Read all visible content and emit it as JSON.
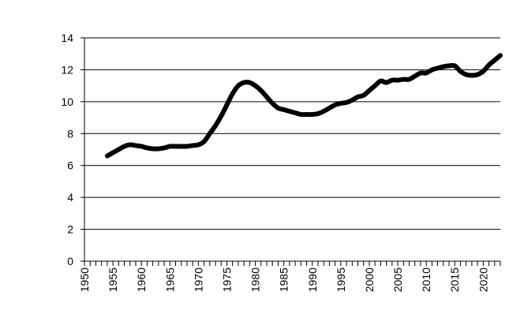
{
  "chart_data": {
    "type": "line",
    "title": "",
    "xlabel": "",
    "ylabel": "",
    "xlim": [
      1950,
      2023
    ],
    "ylim": [
      0,
      14
    ],
    "y_ticks": [
      0,
      2,
      4,
      6,
      8,
      10,
      12,
      14
    ],
    "x_tick_labels": [
      1950,
      1955,
      1960,
      1965,
      1970,
      1975,
      1980,
      1985,
      1990,
      1995,
      2000,
      2005,
      2010,
      2015,
      2020
    ],
    "grid": "horizontal",
    "legend": "none",
    "line_color": "#000000",
    "series": [
      {
        "x": [
          1954,
          1955,
          1956,
          1957,
          1958,
          1959,
          1960,
          1961,
          1962,
          1963,
          1964,
          1965,
          1966,
          1967,
          1968,
          1969,
          1970,
          1971,
          1972,
          1973,
          1974,
          1975,
          1976,
          1977,
          1978,
          1979,
          1980,
          1981,
          1982,
          1983,
          1984,
          1985,
          1986,
          1987,
          1988,
          1989,
          1990,
          1991,
          1992,
          1993,
          1994,
          1995,
          1996,
          1997,
          1998,
          1999,
          2000,
          2001,
          2002,
          2003,
          2004,
          2005,
          2006,
          2007,
          2008,
          2009,
          2010,
          2011,
          2012,
          2013,
          2014,
          2015,
          2016,
          2017,
          2018,
          2019,
          2020,
          2021,
          2022,
          2023
        ],
        "values": [
          6.6,
          6.8,
          7.0,
          7.2,
          7.3,
          7.25,
          7.2,
          7.1,
          7.05,
          7.05,
          7.1,
          7.2,
          7.2,
          7.2,
          7.2,
          7.25,
          7.3,
          7.5,
          8.0,
          8.5,
          9.1,
          9.8,
          10.5,
          11.0,
          11.2,
          11.2,
          11.0,
          10.7,
          10.3,
          9.9,
          9.6,
          9.5,
          9.4,
          9.3,
          9.2,
          9.2,
          9.2,
          9.25,
          9.4,
          9.6,
          9.8,
          9.9,
          9.95,
          10.1,
          10.3,
          10.4,
          10.7,
          11.0,
          11.3,
          11.2,
          11.35,
          11.35,
          11.4,
          11.4,
          11.6,
          11.8,
          11.8,
          12.0,
          12.1,
          12.2,
          12.25,
          12.25,
          11.9,
          11.7,
          11.65,
          11.7,
          11.9,
          12.3,
          12.6,
          12.9
        ]
      }
    ]
  }
}
